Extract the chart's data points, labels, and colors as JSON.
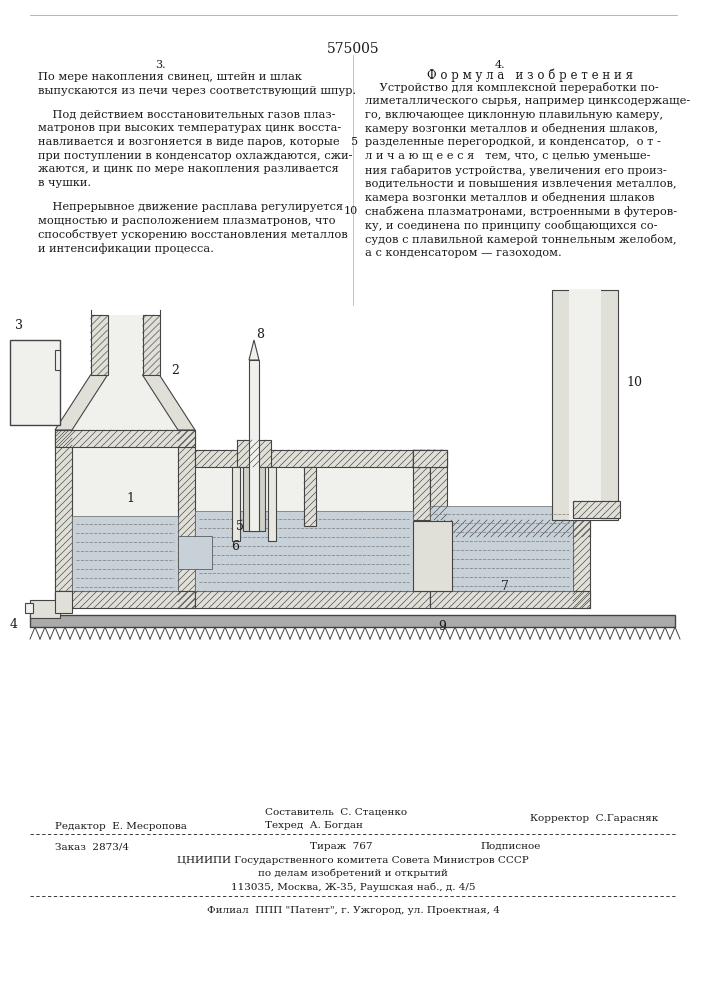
{
  "patent_number": "575005",
  "page_num_left": "3.",
  "page_num_right": "4.",
  "left_col_lines": [
    "По мере накопления свинец, штейн и шлак",
    "выпускаются из печи через соответствующий шпур.",
    "",
    "    Под действием восстановительных газов плаз-",
    "матронов при высоких температурах цинк восста-",
    "навливается и возгоняется в виде паров, которые",
    "при поступлении в конденсатор охлаждаются, сжи-",
    "жаются, и цинк по мере накопления разливается",
    "в чушки.",
    "",
    "    Непрерывное движение расплава регулируется",
    "мощностью и расположением плазматронов, что",
    "способствует ускорению восстановления металлов",
    "и интенсификации процесса."
  ],
  "right_col_header": "Ф о р м у л а   и з о б р е т е н и я",
  "right_col_lines": [
    "    Устройство для комплексной переработки по-",
    "лиметаллического сырья, например цинксодержаще-",
    "го, включающее циклонную плавильную камеру,",
    "камеру возгонки металлов и обеднения шлаков,",
    "разделенные перегородкой, и конденсатор,  о т -",
    "л и ч а ю щ е е с я   тем, что, с целью уменьше-",
    "ния габаритов устройства, увеличения его произ-",
    "водительности и повышения извлечения металлов,",
    "камера возгонки металлов и обеднения шлаков",
    "снабжена плазматронами, встроенными в футеров-",
    "ку, и соединена по принципу сообщающихся со-",
    "судов с плавильной камерой тоннельным желобом,",
    "а с конденсатором — газоходом."
  ],
  "line_num_5_row": 4,
  "line_num_10_row": 9,
  "editor": "Редактор  Е. Месропова",
  "compiler": "Составитель  С. Стаценко",
  "tech": "Техред  А. Богдан",
  "corrector": "Корректор  С.Гарасняк",
  "order": "Заказ  2873/4",
  "circulation": "Тираж  767",
  "subscription": "Подписное",
  "org1": "ЦНИИПИ Государственного комитета Совета Министров СССР",
  "org2": "по делам изобретений и открытий",
  "org3": "113035, Москва, Ж-35, Раушская наб., д. 4/5",
  "branch": "Филиал  ППП \"Патент\", г. Ужгород, ул. Проектная, 4",
  "bg": "#ffffff",
  "tc": "#1a1a1a",
  "hatch_color": "#444444",
  "wall_fill": "#e0e0d8",
  "interior_fill": "#f0f0ec",
  "melt_fill": "#c8d0d8",
  "melt_lines": "#888888"
}
